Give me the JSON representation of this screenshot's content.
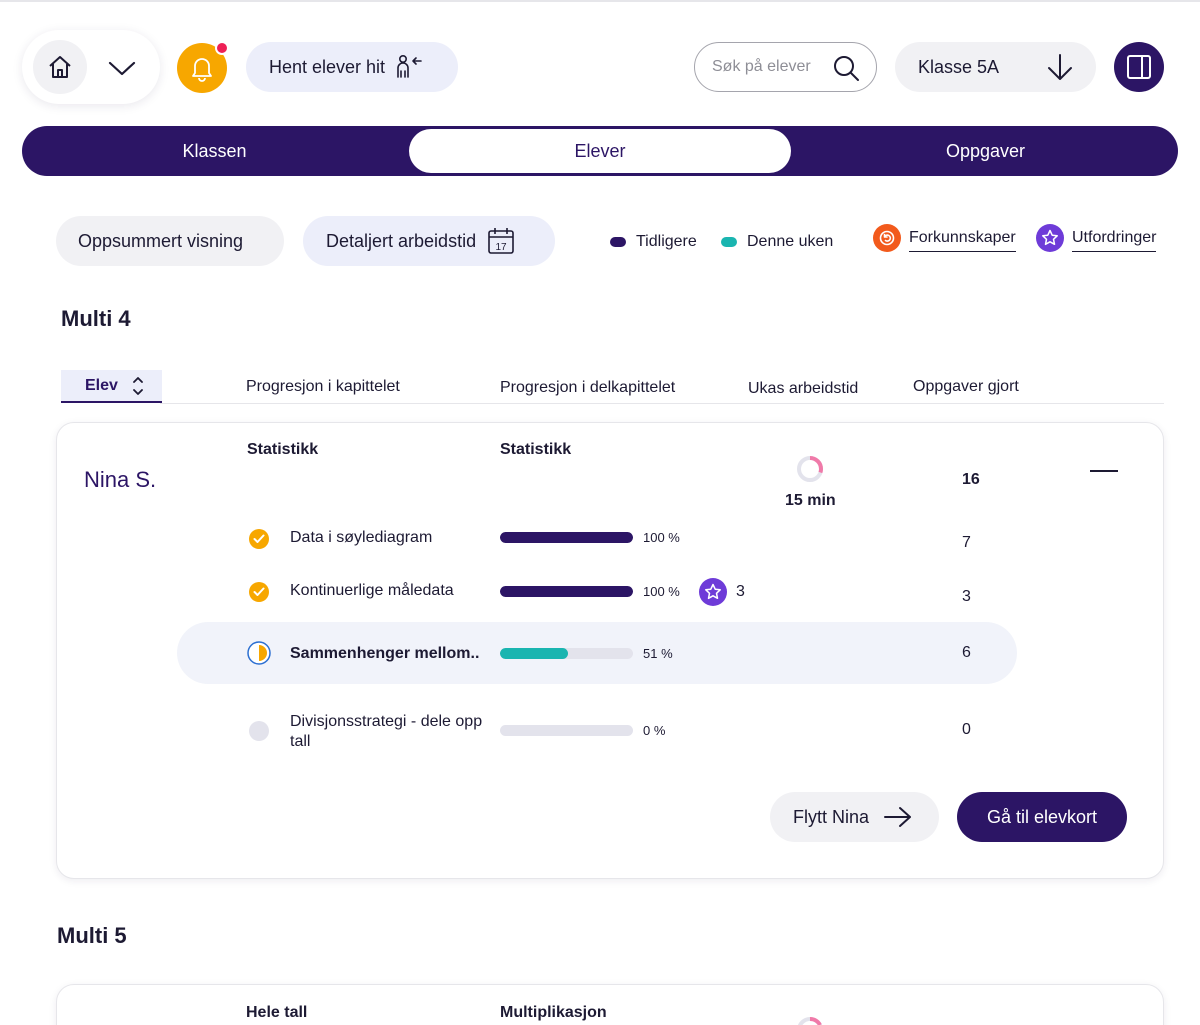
{
  "header": {
    "fetch_label": "Hent elever hit",
    "search_placeholder": "Søk på elever",
    "class_label": "Klasse 5A"
  },
  "tabs": [
    {
      "label": "Klassen",
      "active": false
    },
    {
      "label": "Elever",
      "active": true
    },
    {
      "label": "Oppgaver",
      "active": false
    }
  ],
  "view": {
    "summary_label": "Oppsummert visning",
    "detailed_label": "Detaljert arbeidstid",
    "calendar_day": "17"
  },
  "legend": {
    "previous": "Tidligere",
    "this_week": "Denne uken",
    "prior_knowledge": "Forkunnskaper",
    "challenges": "Utfordringer"
  },
  "colors": {
    "primary": "#2c1565",
    "this_week": "#1ab5b0",
    "accent_orange": "#f7a700",
    "notification": "#ee2056",
    "prior_knowledge": "#f25a1c",
    "challenge": "#6e3bd8",
    "ring": "#f07aa9"
  },
  "columns": {
    "student": "Elev",
    "chapter_progress": "Progresjon i kapittelet",
    "subchapter_progress": "Progresjon i delkapittelet",
    "weekly_time": "Ukas arbeidstid",
    "tasks_done": "Oppgaver gjort"
  },
  "sections": [
    {
      "title": "Multi 4",
      "student": {
        "name": "Nina S.",
        "chapter_stat_label": "Statistikk",
        "subchapter_stat_label": "Statistikk",
        "weekly_time": "15 min",
        "weekly_time_fraction": 0.3,
        "tasks_total": "16",
        "rows": [
          {
            "label": "Data i søylediagram",
            "status": "done",
            "percent": 100,
            "percent_label": "100 %",
            "tasks": "7"
          },
          {
            "label": "Kontinuerlige måledata",
            "status": "done",
            "percent": 100,
            "percent_label": "100 %",
            "challenges": "3",
            "tasks": "3"
          },
          {
            "label": "Sammenhenger mellom..",
            "status": "in-progress",
            "percent": 51,
            "percent_label": "51 %",
            "tasks": "6"
          },
          {
            "label": "Divisjonsstrategi - dele opp tall",
            "status": "not-started",
            "percent": 0,
            "percent_label": "0 %",
            "tasks": "0"
          }
        ],
        "move_label": "Flytt Nina",
        "card_label": "Gå til elevkort"
      }
    },
    {
      "title": "Multi 5",
      "student": {
        "chapter_stat_label": "Hele tall",
        "subchapter_stat_label": "Multiplikasjon"
      }
    }
  ]
}
